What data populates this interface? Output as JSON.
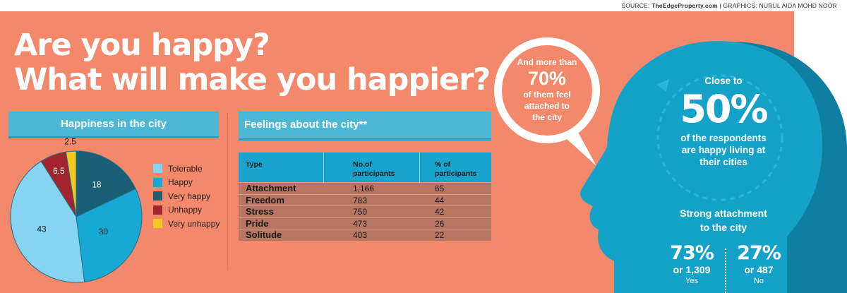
{
  "credit": {
    "source_prefix": "SOURCE: ",
    "source": "TheEdgeProperty.com",
    "graphics": " | GRAPHICS: NURUL AIDA MOHD NOOR"
  },
  "headline": {
    "line1": "Are you happy?",
    "line2": "What will make you happier?"
  },
  "pie_section": {
    "title": "Happiness in the city"
  },
  "feelings_section": {
    "title": "Feelings about the city**"
  },
  "chart_data": [
    {
      "type": "pie",
      "title": "Happiness in the city",
      "labels": [
        "Tolerable",
        "Happy",
        "Very happy",
        "Unhappy",
        "Very unhappy"
      ],
      "values": [
        43,
        30,
        18,
        6.5,
        2.5
      ],
      "value_labels": [
        "43",
        "30",
        "18",
        "6.5",
        "2.5"
      ],
      "colors": [
        "#87d3f2",
        "#17a8d4",
        "#1a5f74",
        "#a3242c",
        "#f4c81e"
      ],
      "legend": "right"
    },
    {
      "type": "table",
      "title": "Feelings about the city**",
      "columns": [
        "Type",
        "No.of participants",
        "% of participants"
      ],
      "rows": [
        {
          "type": "Attachment",
          "count": "1,166",
          "percent": "65"
        },
        {
          "type": "Freedom",
          "count": "783",
          "percent": "44"
        },
        {
          "type": "Stress",
          "count": "750",
          "percent": "42"
        },
        {
          "type": "Pride",
          "count": "473",
          "percent": "26"
        },
        {
          "type": "Solitude",
          "count": "403",
          "percent": "22"
        }
      ]
    }
  ],
  "table_headers": {
    "type": "Type",
    "count_line1": "No.of",
    "count_line2": "participants",
    "percent_line1": "% of",
    "percent_line2": "participants"
  },
  "bubble": {
    "line1": "And more than",
    "big": "70%",
    "line2": "of them feel",
    "line3": "attached to",
    "line4": "the city"
  },
  "head": {
    "line1": "Close to",
    "big": "50%",
    "line2": "of the respondents",
    "line3": "are happy living at",
    "line4": "their cities",
    "attachment_title1": "Strong attachment",
    "attachment_title2": "to the city",
    "yes_big": "73%",
    "yes_sub": "or 1,309",
    "yes_label": "Yes",
    "no_big": "27%",
    "no_sub": "or 487",
    "no_label": "No"
  },
  "colors": {
    "background": "#f3886a",
    "accent": "#4db8d6",
    "head": "#15a2c8",
    "head_shadow": "#0f7fa1"
  }
}
